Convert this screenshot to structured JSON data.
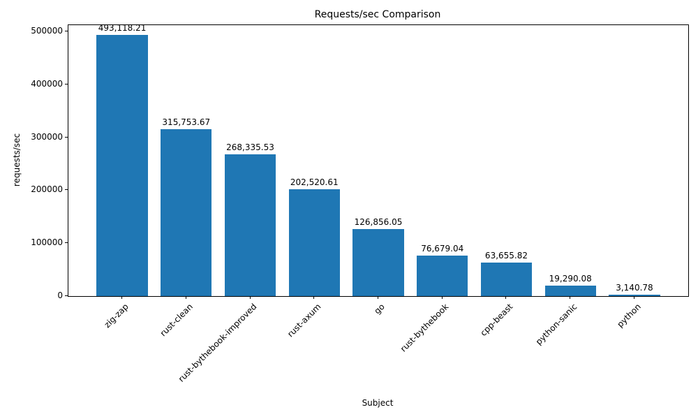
{
  "chart_data": {
    "type": "bar",
    "title": "Requests/sec Comparison",
    "xlabel": "Subject",
    "ylabel": "requests/sec",
    "categories": [
      "zig-zap",
      "rust-clean",
      "rust-bythebook-improved",
      "rust-axum",
      "go",
      "rust-bythebook",
      "cpp-beast",
      "python-sanic",
      "python"
    ],
    "values": [
      493118.21,
      315753.67,
      268335.53,
      202520.61,
      126856.05,
      76679.04,
      63655.82,
      19290.08,
      3140.78
    ],
    "value_labels": [
      "493,118.21",
      "315,753.67",
      "268,335.53",
      "202,520.61",
      "126,856.05",
      "76,679.04",
      "63,655.82",
      "19,290.08",
      "3,140.78"
    ],
    "yticks": [
      0,
      100000,
      200000,
      300000,
      400000,
      500000
    ],
    "ytick_labels": [
      "0",
      "100000",
      "200000",
      "300000",
      "400000",
      "500000"
    ],
    "ylim": [
      0,
      512000
    ],
    "bar_color": "#1f77b4",
    "grid": false,
    "legend": null
  }
}
